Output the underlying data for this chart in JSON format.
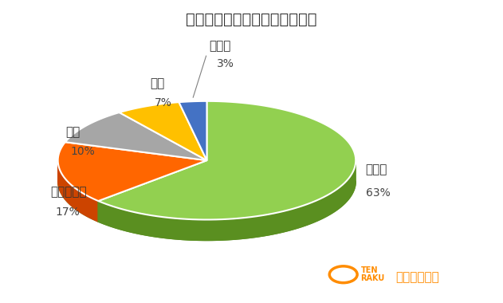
{
  "title": "キャッシングした時の職業は？",
  "labels": [
    "会社員",
    "フリーター",
    "学生",
    "主婦",
    "自営業"
  ],
  "values": [
    63,
    17,
    10,
    7,
    3
  ],
  "colors": [
    "#92D050",
    "#FF6600",
    "#A6A6A6",
    "#FFC000",
    "#4472C4"
  ],
  "dark_colors": [
    "#5A8F20",
    "#CC4400",
    "#707070",
    "#CC9900",
    "#2255A0"
  ],
  "pct_labels": [
    "63%",
    "17%",
    "10%",
    "7%",
    "3%"
  ],
  "background_color": "#FFFFFF",
  "title_fontsize": 14,
  "label_fontsize": 11,
  "pct_fontsize": 10
}
